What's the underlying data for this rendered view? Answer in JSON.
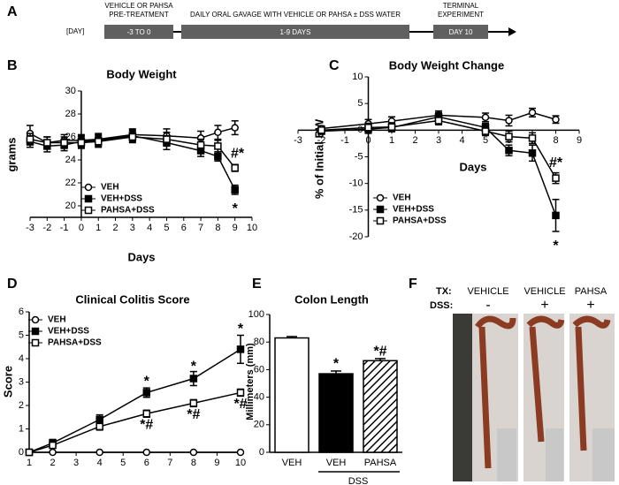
{
  "timeline": {
    "panel": "A",
    "day_label": "[DAY]",
    "phases": [
      {
        "heading": [
          "VEHICLE OR PAHSA",
          "PRE-TREATMENT"
        ],
        "box": "-3 TO 0"
      },
      {
        "heading": [
          "DAILY ORAL GAVAGE WITH VEHICLE OR PAHSA ± DSS WATER"
        ],
        "box": "1-9 DAYS"
      },
      {
        "heading": [
          "TERMINAL",
          "EXPERIMENT"
        ],
        "box": "DAY 10"
      }
    ]
  },
  "chart_data": [
    {
      "type": "line",
      "panel": "B",
      "title": "Body Weight",
      "y_label": "grams",
      "x_label": "Days",
      "x": [
        -3,
        -2,
        -1,
        0,
        1,
        3,
        5,
        7,
        8,
        9
      ],
      "xlim": [
        -3,
        10
      ],
      "xticks": [
        -3,
        -2,
        -1,
        0,
        1,
        2,
        3,
        4,
        5,
        6,
        7,
        8,
        9,
        10
      ],
      "ylim": [
        19,
        30
      ],
      "yticks": [
        20,
        22,
        24,
        26,
        28,
        30
      ],
      "series": [
        {
          "name": "VEH",
          "color": "#000000",
          "marker": "circle-open",
          "values": [
            26.3,
            25.5,
            25.7,
            25.7,
            25.8,
            26.2,
            26.1,
            25.9,
            26.4,
            26.8
          ],
          "errors": [
            0.7,
            0.5,
            0.5,
            0.5,
            0.5,
            0.5,
            0.6,
            0.6,
            0.6,
            0.6
          ]
        },
        {
          "name": "VEH+DSS",
          "color": "#000000",
          "marker": "square-filled",
          "values": [
            25.6,
            25.2,
            25.3,
            25.6,
            25.7,
            26.1,
            25.5,
            24.8,
            24.3,
            21.4
          ],
          "errors": [
            0.5,
            0.5,
            0.5,
            0.5,
            0.5,
            0.5,
            0.6,
            0.5,
            0.4,
            0.4
          ]
        },
        {
          "name": "PAHSA+DSS",
          "color": "#000000",
          "marker": "square-open",
          "values": [
            25.8,
            25.5,
            25.5,
            25.5,
            25.6,
            26.0,
            25.8,
            25.3,
            25.2,
            23.3
          ],
          "errors": [
            0.5,
            0.5,
            0.5,
            0.5,
            0.5,
            0.5,
            0.6,
            0.5,
            0.5,
            0.3
          ]
        }
      ],
      "annotations": [
        "#*",
        "*"
      ]
    },
    {
      "type": "line",
      "panel": "C",
      "title": "Body Weight Change",
      "y_label": "% of Initial BW",
      "x_label": "Days",
      "x": [
        -2,
        0,
        1,
        3,
        5,
        6,
        7,
        8
      ],
      "xlim": [
        -3,
        9
      ],
      "xticks": [
        -3,
        -2,
        -1,
        0,
        1,
        2,
        3,
        4,
        5,
        6,
        7,
        8,
        9
      ],
      "ylim": [
        -20,
        10
      ],
      "yticks": [
        -20,
        -15,
        -10,
        -5,
        0,
        5,
        10
      ],
      "series": [
        {
          "name": "VEH",
          "color": "#000000",
          "marker": "circle-open",
          "values": [
            0.3,
            1.2,
            1.7,
            2.8,
            2.4,
            1.8,
            3.3,
            2.0
          ],
          "errors": [
            0.5,
            0.8,
            0.8,
            0.8,
            0.8,
            1.0,
            0.8,
            0.7
          ]
        },
        {
          "name": "VEH+DSS",
          "color": "#000000",
          "marker": "square-filled",
          "values": [
            -0.2,
            0.2,
            0.5,
            2.5,
            0.5,
            -3.8,
            -4.3,
            -16
          ],
          "errors": [
            0.5,
            0.8,
            0.8,
            0.8,
            0.8,
            1.0,
            1.5,
            3
          ]
        },
        {
          "name": "PAHSA+DSS",
          "color": "#000000",
          "marker": "square-open",
          "values": [
            0,
            0.5,
            0.6,
            1.8,
            -0.2,
            -1.2,
            -1.5,
            -9
          ],
          "errors": [
            0.5,
            0.8,
            0.8,
            0.8,
            0.8,
            1.0,
            1.0,
            1
          ]
        }
      ],
      "annotations": [
        "#*",
        "*"
      ]
    },
    {
      "type": "line",
      "panel": "D",
      "title": "Clinical Colitis Score",
      "y_label": "Score",
      "x": [
        1,
        2,
        4,
        6,
        8,
        10
      ],
      "xlim": [
        1,
        10
      ],
      "xticks": [
        1,
        2,
        3,
        4,
        5,
        6,
        7,
        8,
        9,
        10
      ],
      "ylim": [
        0,
        6
      ],
      "yticks": [
        0,
        1,
        2,
        3,
        4,
        5,
        6
      ],
      "series": [
        {
          "name": "VEH",
          "color": "#000000",
          "marker": "circle-open",
          "values": [
            0,
            0,
            0,
            0,
            0,
            0
          ],
          "errors": [
            0,
            0,
            0,
            0,
            0,
            0
          ]
        },
        {
          "name": "VEH+DSS",
          "color": "#000000",
          "marker": "square-filled",
          "values": [
            0,
            0.4,
            1.4,
            2.55,
            3.15,
            4.4
          ],
          "errors": [
            0,
            0.15,
            0.2,
            0.2,
            0.3,
            0.6
          ]
        },
        {
          "name": "PAHSA+DSS",
          "color": "#000000",
          "marker": "square-open",
          "values": [
            0,
            0.3,
            1.1,
            1.65,
            2.1,
            2.55
          ],
          "errors": [
            0,
            0.1,
            0.15,
            0.15,
            0.15,
            0.15
          ]
        }
      ],
      "annotations": [
        "*",
        "*",
        "*",
        "*#",
        "*#",
        "*#"
      ]
    },
    {
      "type": "bar",
      "panel": "E",
      "title": "Colon Length",
      "y_label": "Millimeters (mm)",
      "categories": [
        "VEH",
        "VEH",
        "PAHSA"
      ],
      "values": [
        83,
        57,
        66.5
      ],
      "errors": [
        1,
        2,
        1.5
      ],
      "bar_styles": [
        "open",
        "filled",
        "hatched"
      ],
      "color": "#000000",
      "ylim": [
        0,
        100
      ],
      "yticks": [
        0,
        20,
        40,
        60,
        80,
        100
      ],
      "group_label": "DSS",
      "annotations": [
        "*",
        "*#"
      ]
    }
  ],
  "photo": {
    "panel": "F",
    "row_labels": [
      "TX:",
      "DSS:"
    ],
    "columns": [
      {
        "tx": "VEHICLE",
        "dss": "-"
      },
      {
        "tx": "VEHICLE",
        "dss": "+"
      },
      {
        "tx": "PAHSA",
        "dss": "+"
      }
    ]
  }
}
